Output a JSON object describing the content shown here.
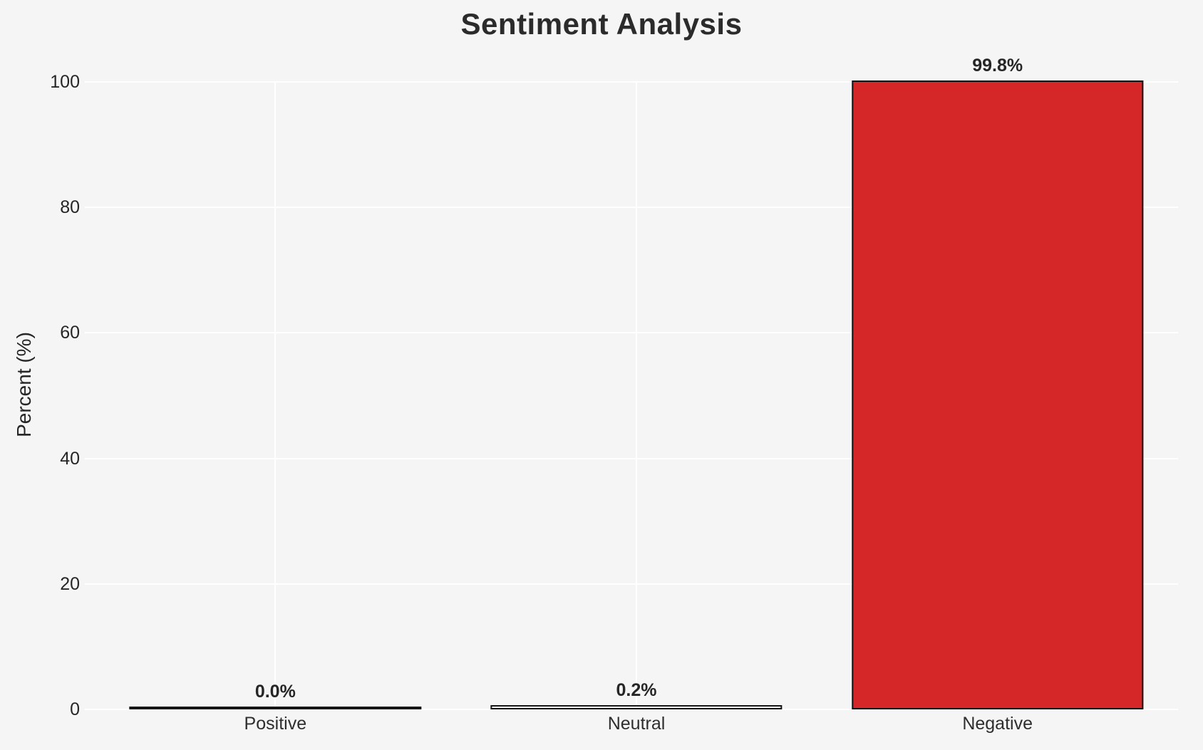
{
  "figure": {
    "background_color": "#f5f5f5",
    "grid_color": "#ffffff",
    "bar_edge_color": "#151515",
    "negative_bar_color": "#d62728",
    "text_color": "#262626"
  },
  "chart_data": {
    "type": "bar",
    "title": "Sentiment Analysis",
    "xlabel": "",
    "ylabel": "Percent (%)",
    "categories": [
      "Positive",
      "Neutral",
      "Negative"
    ],
    "values": [
      0.0,
      0.2,
      99.8
    ],
    "bar_labels": [
      "0.0%",
      "0.2%",
      "99.8%"
    ],
    "bar_fill_colors": [
      null,
      null,
      "#d62728"
    ],
    "ylim": [
      0,
      100
    ],
    "yticks": [
      0,
      20,
      40,
      60,
      80,
      100
    ],
    "grid": "on",
    "legend_position": "none"
  }
}
